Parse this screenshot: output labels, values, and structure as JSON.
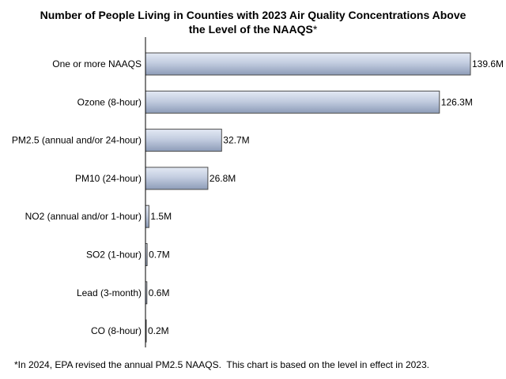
{
  "chart_data": {
    "type": "bar",
    "orientation": "horizontal",
    "title_line1": "Number of People Living in Counties with 2023 Air Quality Concentrations Above",
    "title_line2": "the Level of the NAAQS",
    "title_mark": "*",
    "categories": [
      "One or more NAAQS",
      "Ozone (8-hour)",
      "PM2.5 (annual and/or 24-hour)",
      "PM10 (24-hour)",
      "NO2 (annual and/or 1-hour)",
      "SO2 (1-hour)",
      "Lead (3-month)",
      "CO (8-hour)"
    ],
    "values": [
      139.6,
      126.3,
      32.7,
      26.8,
      1.5,
      0.7,
      0.6,
      0.2
    ],
    "value_labels": [
      "139.6M",
      "126.3M",
      "32.7M",
      "26.8M",
      "1.5M",
      "0.7M",
      "0.6M",
      "0.2M"
    ],
    "unit": "M",
    "xlim": [
      0,
      139.6
    ],
    "xlabel": "",
    "ylabel": "",
    "grid": false,
    "legend": "none",
    "bar_color_light": "#e3e9f4",
    "bar_color_dark": "#8d9cb8",
    "bar_stroke": "#4a4a4a",
    "axis_color": "#000000"
  },
  "footnote": "*In 2024, EPA revised the annual PM2.5 NAAQS.  This chart is based on the level in effect in 2023."
}
